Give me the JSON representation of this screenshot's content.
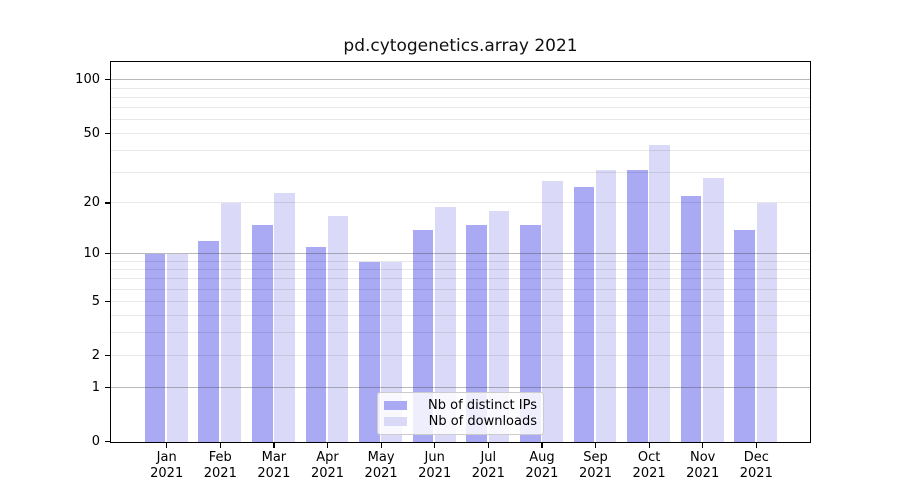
{
  "chart_data": {
    "type": "bar",
    "title": "pd.cytogenetics.array 2021",
    "categories": [
      "Jan",
      "Feb",
      "Mar",
      "Apr",
      "May",
      "Jun",
      "Jul",
      "Aug",
      "Sep",
      "Oct",
      "Nov",
      "Dec"
    ],
    "category_year": "2021",
    "series": [
      {
        "name": "Nb of distinct IPs",
        "color": "#a9a9f4",
        "values": [
          10,
          12,
          15,
          11,
          9,
          14,
          15,
          15,
          25,
          31,
          22,
          14
        ]
      },
      {
        "name": "Nb of downloads",
        "color": "#dadaf8",
        "values": [
          10,
          20,
          23,
          17,
          9,
          19,
          18,
          27,
          31,
          43,
          28,
          20
        ]
      }
    ],
    "yscale": "log1p",
    "ylim": [
      0,
      125
    ],
    "y_labeled_ticks": [
      0,
      1,
      2,
      5,
      10,
      20,
      50,
      100
    ],
    "y_major_gridlines": [
      1,
      10,
      100
    ],
    "y_minor_gridlines": [
      2,
      3,
      4,
      5,
      6,
      7,
      8,
      9,
      20,
      30,
      40,
      50,
      60,
      70,
      80,
      90
    ],
    "grid": true,
    "legend": {
      "location": "lower center"
    },
    "colors": {
      "background": "#ffffff",
      "spine": "#000000",
      "grid_major": "rgba(70,70,70,0.38)",
      "grid_minor": "rgba(0,0,0,0.09)",
      "text": "#000000"
    }
  }
}
